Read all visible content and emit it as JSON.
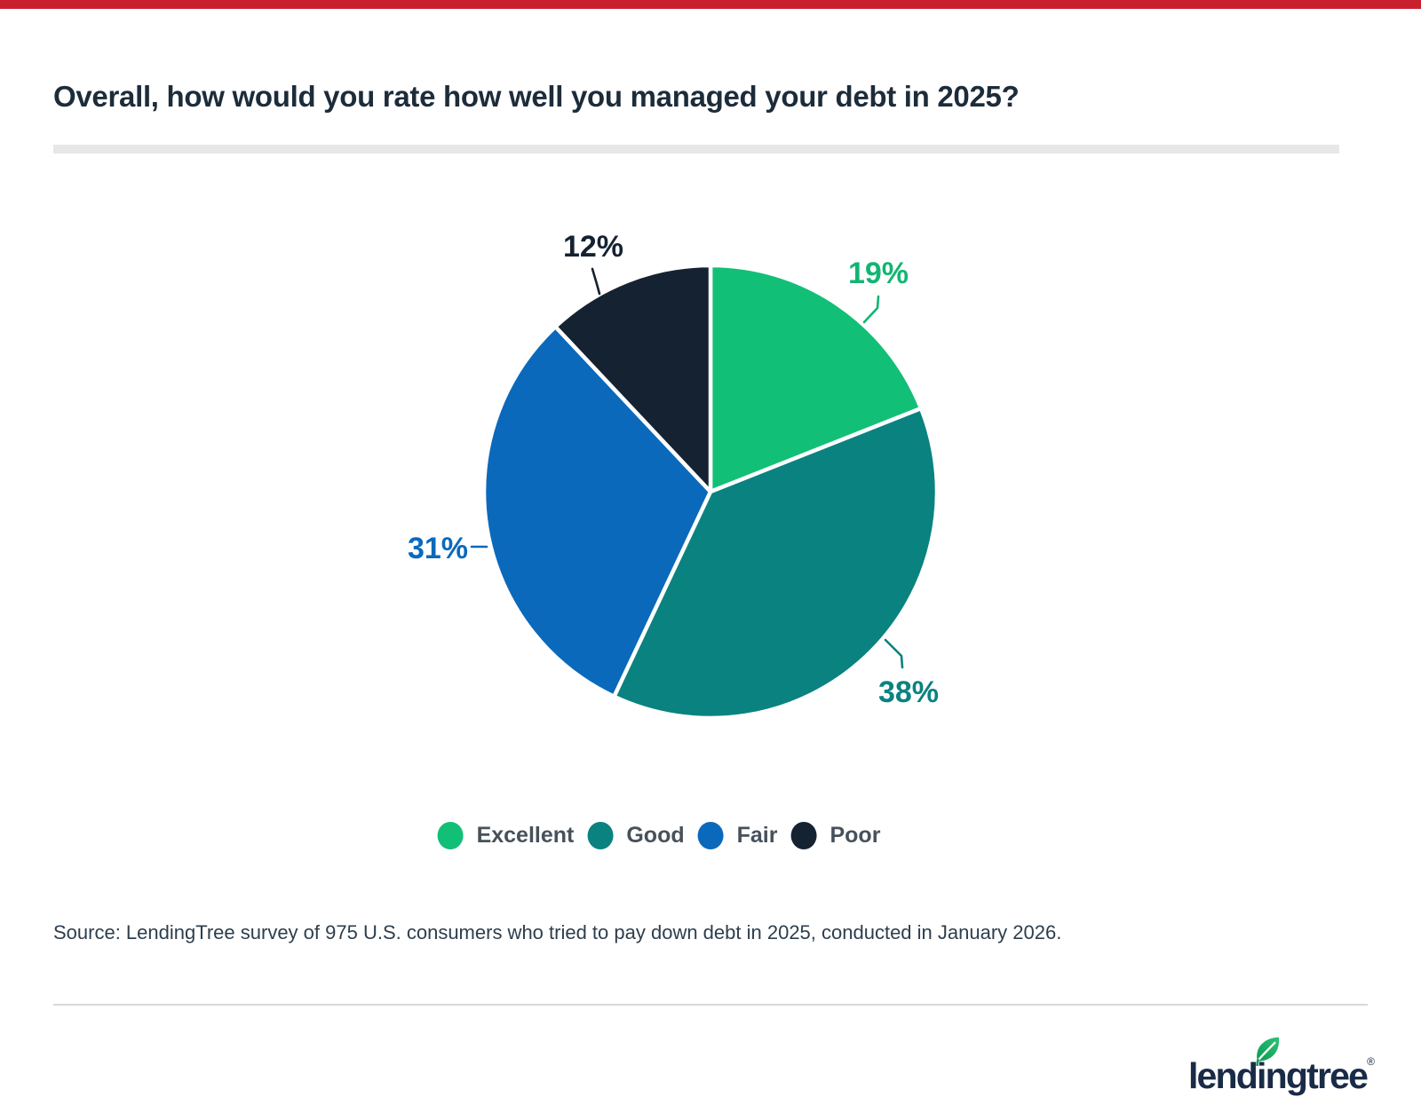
{
  "page": {
    "top_bar_color": "#c8202f",
    "background_color": "#ffffff"
  },
  "header": {
    "title": "Overall, how would you rate how well you managed your debt in 2025?"
  },
  "chart_data": {
    "type": "pie",
    "title": "Overall, how would you rate how well you managed your debt in 2025?",
    "categories": [
      "Excellent",
      "Good",
      "Fair",
      "Poor"
    ],
    "values": [
      19,
      38,
      31,
      12
    ],
    "slice_labels": [
      "19%",
      "38%",
      "31%",
      "12%"
    ],
    "colors": [
      "#12bf77",
      "#0a8280",
      "#0b69bc",
      "#152231"
    ],
    "label_colors": [
      "#12b573",
      "#0a8280",
      "#0b69bc",
      "#152231"
    ],
    "start_angle_deg": 0,
    "direction": "clockwise",
    "separator_color": "#ffffff",
    "legend_position": "bottom"
  },
  "legend": {
    "items": [
      {
        "label": "Excellent",
        "color": "#12bf77"
      },
      {
        "label": "Good",
        "color": "#0a8280"
      },
      {
        "label": "Fair",
        "color": "#0b69bc"
      },
      {
        "label": "Poor",
        "color": "#152231"
      }
    ]
  },
  "source": {
    "text": "Source: LendingTree survey of 975 U.S. consumers who tried to pay down debt in 2025, conducted in January 2026."
  },
  "footer": {
    "logo_text": "lendingtree",
    "registered_mark": "®",
    "leaf_color_top": "#2dc277",
    "leaf_color_bottom": "#0c9a53"
  }
}
